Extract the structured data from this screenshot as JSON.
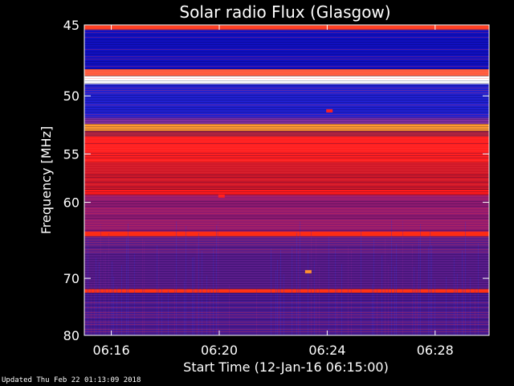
{
  "chart_data": {
    "type": "heatmap",
    "title": "Solar radio Flux (Glasgow)",
    "xlabel": "Start Time (12-Jan-16 06:15:00)",
    "ylabel": "Frequency [MHz]",
    "x_range_minutes": [
      "06:15:00",
      "06:30:00"
    ],
    "y_range_mhz": [
      45,
      80
    ],
    "y_axis_direction": "frequency increases downward, log-like spacing",
    "x_ticks": [
      "06:16",
      "06:20",
      "06:24",
      "06:28"
    ],
    "y_ticks": [
      "45",
      "50",
      "55",
      "60",
      "70",
      "80"
    ],
    "colormap": "blue-purple-red-white (rainbow-like)",
    "bands": [
      {
        "mhz_from": 45,
        "mhz_to": 45.3,
        "color": "#ff4020"
      },
      {
        "mhz_from": 45.3,
        "mhz_to": 48.0,
        "color": "#1010c0"
      },
      {
        "mhz_from": 48.0,
        "mhz_to": 48.5,
        "color": "#ff6040"
      },
      {
        "mhz_from": 48.5,
        "mhz_to": 49.1,
        "color": "#ffffff"
      },
      {
        "mhz_from": 49.1,
        "mhz_to": 51.8,
        "color": "#2020d0"
      },
      {
        "mhz_from": 51.8,
        "mhz_to": 52.3,
        "color": "#8030a0"
      },
      {
        "mhz_from": 52.3,
        "mhz_to": 52.9,
        "color": "#ff9a30"
      },
      {
        "mhz_from": 52.9,
        "mhz_to": 53.4,
        "color": "#a02040"
      },
      {
        "mhz_from": 53.4,
        "mhz_to": 55.8,
        "color": "#ff2020"
      },
      {
        "mhz_from": 55.8,
        "mhz_to": 58.6,
        "color": "#d01828"
      },
      {
        "mhz_from": 58.6,
        "mhz_to": 59.2,
        "color": "#ff1a1a"
      },
      {
        "mhz_from": 59.2,
        "mhz_to": 63.5,
        "color": "#901a70"
      },
      {
        "mhz_from": 63.5,
        "mhz_to": 64.1,
        "color": "#ff2a10"
      },
      {
        "mhz_from": 64.1,
        "mhz_to": 71.7,
        "color": "#5a1c8a"
      },
      {
        "mhz_from": 71.7,
        "mhz_to": 72.3,
        "color": "#ff3010"
      },
      {
        "mhz_from": 72.3,
        "mhz_to": 80.0,
        "color": "#4a1a90"
      }
    ],
    "bursts": [
      {
        "time": "06:23:18",
        "mhz": 69.0,
        "color": "#ff9030"
      },
      {
        "time": "06:24:05",
        "mhz": 51.2,
        "color": "#ff2020"
      },
      {
        "time": "06:20:05",
        "mhz": 59.3,
        "color": "#ff2020"
      }
    ]
  },
  "footer": {
    "updated": "Updated Thu Feb 22 01:13:09 2018"
  }
}
